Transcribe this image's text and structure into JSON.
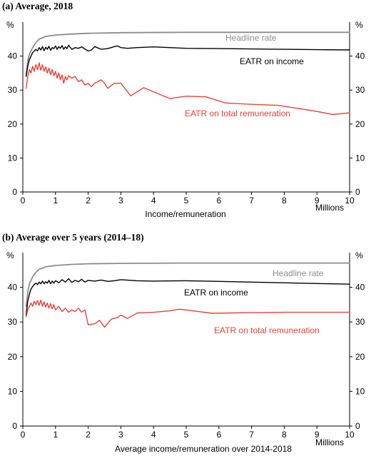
{
  "chart_data": [
    {
      "type": "line",
      "title": "(a) Average, 2018",
      "xlabel": "Income/remuneration",
      "x_unit": "Millions",
      "y_unit": "%",
      "xlim": [
        0,
        10
      ],
      "ylim": [
        0,
        50
      ],
      "x_ticks": [
        "0",
        "1",
        "2",
        "3",
        "4",
        "5",
        "6",
        "7",
        "8",
        "9",
        "10"
      ],
      "y_ticks": [
        "0",
        "10",
        "20",
        "30",
        "40"
      ],
      "grid": false,
      "series": [
        {
          "name": "Headline rate",
          "color": "#8c8c8c",
          "points": [
            [
              0.1,
              34.5
            ],
            [
              0.15,
              38.5
            ],
            [
              0.2,
              40.5
            ],
            [
              0.3,
              42.5
            ],
            [
              0.4,
              44
            ],
            [
              0.5,
              45
            ],
            [
              0.7,
              45.8
            ],
            [
              1,
              46.2
            ],
            [
              1.5,
              46.5
            ],
            [
              2,
              46.7
            ],
            [
              3,
              46.9
            ],
            [
              5,
              47
            ],
            [
              7,
              47
            ],
            [
              10,
              47
            ]
          ]
        },
        {
          "name": "EATR on income",
          "color": "#000000",
          "points": [
            [
              0.1,
              34
            ],
            [
              0.15,
              37
            ],
            [
              0.2,
              39
            ],
            [
              0.25,
              40
            ],
            [
              0.3,
              41
            ],
            [
              0.35,
              41.5
            ],
            [
              0.4,
              42
            ],
            [
              0.45,
              41.5
            ],
            [
              0.5,
              42.5
            ],
            [
              0.55,
              41.8
            ],
            [
              0.6,
              42.8
            ],
            [
              0.65,
              41.6
            ],
            [
              0.7,
              42.6
            ],
            [
              0.75,
              42
            ],
            [
              0.8,
              42.9
            ],
            [
              0.85,
              41.7
            ],
            [
              0.9,
              42.5
            ],
            [
              0.95,
              42.2
            ],
            [
              1,
              43
            ],
            [
              1.05,
              42
            ],
            [
              1.1,
              42.8
            ],
            [
              1.15,
              42.3
            ],
            [
              1.2,
              43.1
            ],
            [
              1.25,
              42
            ],
            [
              1.3,
              42.7
            ],
            [
              1.35,
              42.2
            ],
            [
              1.4,
              43.2
            ],
            [
              1.5,
              42
            ],
            [
              1.6,
              42.5
            ],
            [
              1.7,
              42.3
            ],
            [
              1.8,
              42.7
            ],
            [
              1.9,
              42.1
            ],
            [
              2,
              41.5
            ],
            [
              2.1,
              41.8
            ],
            [
              2.2,
              42.8
            ],
            [
              2.4,
              42
            ],
            [
              2.6,
              42.2
            ],
            [
              2.8,
              42.8
            ],
            [
              2.9,
              43
            ],
            [
              3,
              42.5
            ],
            [
              3.2,
              42.3
            ],
            [
              3.5,
              42.5
            ],
            [
              4,
              42.7
            ],
            [
              4.5,
              42.5
            ],
            [
              5,
              42.3
            ],
            [
              6,
              42.2
            ],
            [
              7,
              42.1
            ],
            [
              8,
              42
            ],
            [
              9,
              41.9
            ],
            [
              10,
              41.8
            ]
          ]
        },
        {
          "name": "EATR on total remuneration",
          "color": "#e8423a",
          "points": [
            [
              0.1,
              30.5
            ],
            [
              0.15,
              34
            ],
            [
              0.2,
              36
            ],
            [
              0.25,
              35
            ],
            [
              0.3,
              37
            ],
            [
              0.35,
              35.5
            ],
            [
              0.4,
              37.5
            ],
            [
              0.45,
              36
            ],
            [
              0.5,
              38
            ],
            [
              0.55,
              35.8
            ],
            [
              0.6,
              37.5
            ],
            [
              0.65,
              35.5
            ],
            [
              0.7,
              36.8
            ],
            [
              0.75,
              35
            ],
            [
              0.8,
              36.5
            ],
            [
              0.85,
              34.5
            ],
            [
              0.9,
              36
            ],
            [
              0.95,
              34.2
            ],
            [
              1,
              35.5
            ],
            [
              1.05,
              33.5
            ],
            [
              1.1,
              35
            ],
            [
              1.15,
              33
            ],
            [
              1.2,
              34.5
            ],
            [
              1.25,
              32
            ],
            [
              1.3,
              34
            ],
            [
              1.35,
              33
            ],
            [
              1.4,
              34.2
            ],
            [
              1.5,
              33.5
            ],
            [
              1.6,
              34
            ],
            [
              1.7,
              32.5
            ],
            [
              1.8,
              33
            ],
            [
              1.9,
              31.5
            ],
            [
              2,
              32
            ],
            [
              2.1,
              31
            ],
            [
              2.2,
              32
            ],
            [
              2.4,
              33
            ],
            [
              2.5,
              32
            ],
            [
              2.6,
              30.5
            ],
            [
              2.8,
              32
            ],
            [
              3,
              32
            ],
            [
              3.3,
              28.3
            ],
            [
              3.7,
              30.7
            ],
            [
              4,
              29.5
            ],
            [
              4.5,
              27.5
            ],
            [
              5,
              28.2
            ],
            [
              5.6,
              28
            ],
            [
              6.2,
              26.2
            ],
            [
              7,
              25.8
            ],
            [
              7.8,
              25.5
            ],
            [
              8.5,
              24.5
            ],
            [
              9,
              23.7
            ],
            [
              9.5,
              22.8
            ],
            [
              10,
              23.3
            ]
          ]
        }
      ],
      "annotations": [
        {
          "text": "Headline rate",
          "color": "#8c8c8c"
        },
        {
          "text": "EATR on income",
          "color": "#000000"
        },
        {
          "text": "EATR on total remuneration",
          "color": "#e8423a"
        }
      ]
    },
    {
      "type": "line",
      "title": "(b) Average over 5 years (2014–18)",
      "xlabel": "Average income/remuneration over 2014-2018",
      "x_unit": "Millions",
      "y_unit": "%",
      "xlim": [
        0,
        10
      ],
      "ylim": [
        0,
        50
      ],
      "x_ticks": [
        "0",
        "1",
        "2",
        "3",
        "4",
        "5",
        "6",
        "7",
        "8",
        "9",
        "10"
      ],
      "y_ticks": [
        "0",
        "10",
        "20",
        "30",
        "40"
      ],
      "grid": false,
      "series": [
        {
          "name": "Headline rate",
          "color": "#8c8c8c",
          "points": [
            [
              0.1,
              34.5
            ],
            [
              0.15,
              38.5
            ],
            [
              0.2,
              41
            ],
            [
              0.3,
              43
            ],
            [
              0.4,
              44.3
            ],
            [
              0.5,
              45.2
            ],
            [
              0.7,
              45.9
            ],
            [
              1,
              46.3
            ],
            [
              1.5,
              46.6
            ],
            [
              2,
              46.8
            ],
            [
              3,
              46.9
            ],
            [
              5,
              47
            ],
            [
              7,
              47
            ],
            [
              10,
              47
            ]
          ]
        },
        {
          "name": "EATR on income",
          "color": "#000000",
          "points": [
            [
              0.1,
              32
            ],
            [
              0.15,
              36
            ],
            [
              0.2,
              38
            ],
            [
              0.25,
              39.5
            ],
            [
              0.3,
              40.2
            ],
            [
              0.35,
              40.8
            ],
            [
              0.4,
              41.2
            ],
            [
              0.45,
              40.8
            ],
            [
              0.5,
              41.5
            ],
            [
              0.55,
              41
            ],
            [
              0.6,
              41.8
            ],
            [
              0.65,
              41
            ],
            [
              0.7,
              41.6
            ],
            [
              0.75,
              41.2
            ],
            [
              0.8,
              42
            ],
            [
              0.85,
              41
            ],
            [
              0.9,
              41.8
            ],
            [
              0.95,
              41.2
            ],
            [
              1,
              41.9
            ],
            [
              1.1,
              41.3
            ],
            [
              1.2,
              42.2
            ],
            [
              1.3,
              41.5
            ],
            [
              1.4,
              42.5
            ],
            [
              1.5,
              41.4
            ],
            [
              1.6,
              42
            ],
            [
              1.7,
              41.6
            ],
            [
              1.8,
              42.3
            ],
            [
              1.9,
              41.5
            ],
            [
              2,
              42
            ],
            [
              2.2,
              41.8
            ],
            [
              2.4,
              42.1
            ],
            [
              2.6,
              41.7
            ],
            [
              2.8,
              41.9
            ],
            [
              3,
              42.2
            ],
            [
              3.5,
              41.9
            ],
            [
              4,
              41.8
            ],
            [
              5,
              41.9
            ],
            [
              6,
              41.7
            ],
            [
              7,
              41.5
            ],
            [
              8,
              41.3
            ],
            [
              9,
              41.1
            ],
            [
              10,
              40.9
            ]
          ]
        },
        {
          "name": "EATR on total remuneration",
          "color": "#e8423a",
          "points": [
            [
              0.1,
              31.5
            ],
            [
              0.15,
              33.5
            ],
            [
              0.2,
              34.5
            ],
            [
              0.25,
              35.5
            ],
            [
              0.3,
              34.5
            ],
            [
              0.35,
              36
            ],
            [
              0.4,
              35
            ],
            [
              0.45,
              36.2
            ],
            [
              0.5,
              34.8
            ],
            [
              0.55,
              36.3
            ],
            [
              0.6,
              34.5
            ],
            [
              0.65,
              35.8
            ],
            [
              0.7,
              34.3
            ],
            [
              0.75,
              35.5
            ],
            [
              0.8,
              34
            ],
            [
              0.85,
              35.3
            ],
            [
              0.9,
              33.8
            ],
            [
              0.95,
              35
            ],
            [
              1,
              33.5
            ],
            [
              1.1,
              34.5
            ],
            [
              1.2,
              33
            ],
            [
              1.3,
              34
            ],
            [
              1.4,
              32.8
            ],
            [
              1.5,
              33.5
            ],
            [
              1.6,
              33
            ],
            [
              1.7,
              34
            ],
            [
              1.8,
              32.8
            ],
            [
              1.9,
              33.5
            ],
            [
              2,
              29.2
            ],
            [
              2.2,
              29.5
            ],
            [
              2.35,
              30.5
            ],
            [
              2.5,
              28.5
            ],
            [
              2.7,
              30.8
            ],
            [
              2.9,
              31.3
            ],
            [
              3,
              32
            ],
            [
              3.2,
              31
            ],
            [
              3.5,
              32.6
            ],
            [
              4,
              32.8
            ],
            [
              4.5,
              33.2
            ],
            [
              4.8,
              33.7
            ],
            [
              5.2,
              33.2
            ],
            [
              5.8,
              32.5
            ],
            [
              7,
              32.7
            ],
            [
              8,
              32.8
            ],
            [
              10,
              32.8
            ]
          ]
        }
      ],
      "annotations": [
        {
          "text": "Headline rate",
          "color": "#8c8c8c"
        },
        {
          "text": "EATR on income",
          "color": "#000000"
        },
        {
          "text": "EATR on total remuneration",
          "color": "#e8423a"
        }
      ]
    }
  ]
}
